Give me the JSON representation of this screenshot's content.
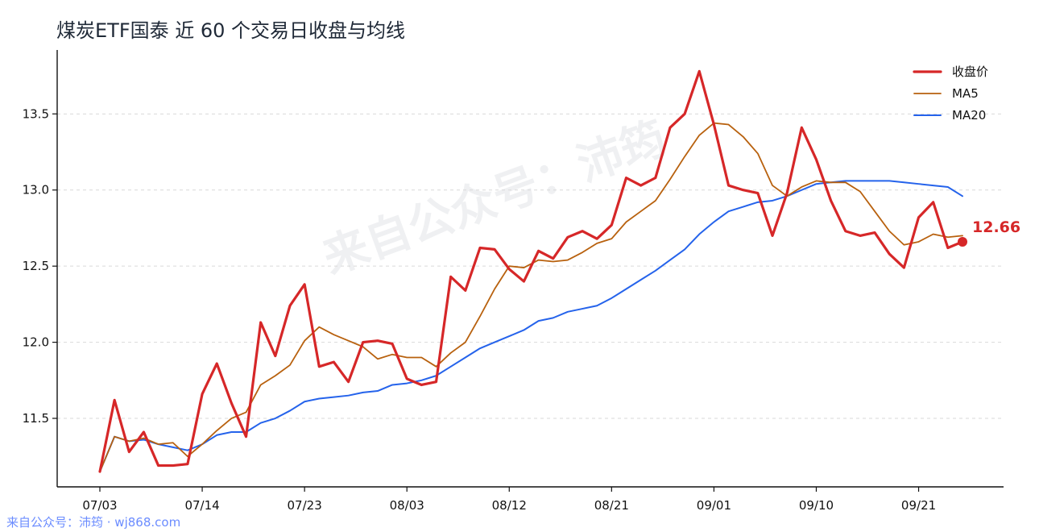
{
  "chart_data": {
    "type": "line",
    "title": "煤炭ETF国泰 近 60 个交易日收盘与均线",
    "xlabel": "",
    "ylabel": "",
    "x_tick_labels": [
      "07/03",
      "07/14",
      "07/23",
      "08/03",
      "08/12",
      "08/21",
      "09/01",
      "09/10",
      "09/21"
    ],
    "y_ticks": [
      11.5,
      12.0,
      12.5,
      13.0,
      13.5
    ],
    "y_tick_labels": [
      "11.5",
      "12.0",
      "12.5",
      "13.0",
      "13.5"
    ],
    "ylim": [
      11.05,
      13.92
    ],
    "grid": "horizontal dashed",
    "legend_position": "top-right",
    "series": [
      {
        "name": "收盘价",
        "color": "#d62728",
        "values": [
          11.15,
          11.62,
          11.28,
          11.41,
          11.19,
          11.19,
          11.2,
          11.66,
          11.86,
          11.6,
          11.38,
          12.13,
          11.91,
          12.24,
          12.38,
          11.84,
          11.87,
          11.74,
          12.0,
          12.01,
          11.99,
          11.76,
          11.72,
          11.74,
          12.43,
          12.34,
          12.62,
          12.61,
          12.48,
          12.4,
          12.6,
          12.55,
          12.69,
          12.73,
          12.68,
          12.77,
          13.08,
          13.03,
          13.08,
          13.41,
          13.5,
          13.78,
          13.43,
          13.03,
          13.0,
          12.98,
          12.7,
          12.98,
          13.41,
          13.2,
          12.93,
          12.73,
          12.7,
          12.72,
          12.58,
          12.49,
          12.82,
          12.92,
          12.62,
          12.66
        ]
      },
      {
        "name": "MA5",
        "color": "#b8610e",
        "values": [
          11.15,
          11.38,
          11.35,
          11.37,
          11.33,
          11.34,
          11.25,
          11.33,
          11.42,
          11.5,
          11.54,
          11.72,
          11.78,
          11.85,
          12.01,
          12.1,
          12.05,
          12.01,
          11.97,
          11.89,
          11.92,
          11.9,
          11.9,
          11.84,
          11.93,
          12.0,
          12.17,
          12.35,
          12.5,
          12.49,
          12.54,
          12.53,
          12.54,
          12.59,
          12.65,
          12.68,
          12.79,
          12.86,
          12.93,
          13.07,
          13.22,
          13.36,
          13.44,
          13.43,
          13.35,
          13.24,
          13.03,
          12.96,
          13.02,
          13.06,
          13.05,
          13.05,
          12.99,
          12.86,
          12.73,
          12.64,
          12.66,
          12.71,
          12.69,
          12.7
        ]
      },
      {
        "name": "MA20",
        "color": "#2563eb",
        "values": [
          11.15,
          11.38,
          11.35,
          11.36,
          11.33,
          11.31,
          11.29,
          11.33,
          11.39,
          11.41,
          11.41,
          11.47,
          11.5,
          11.55,
          11.61,
          11.63,
          11.64,
          11.65,
          11.67,
          11.68,
          11.72,
          11.73,
          11.75,
          11.78,
          11.84,
          11.9,
          11.96,
          12.0,
          12.04,
          12.08,
          12.14,
          12.16,
          12.2,
          12.22,
          12.24,
          12.29,
          12.35,
          12.41,
          12.47,
          12.54,
          12.61,
          12.71,
          12.79,
          12.86,
          12.89,
          12.92,
          12.93,
          12.96,
          13.0,
          13.04,
          13.05,
          13.06,
          13.06,
          13.06,
          13.06,
          13.05,
          13.04,
          13.03,
          13.02,
          12.96
        ]
      }
    ],
    "annotations": [
      {
        "series": "收盘价",
        "index": 59,
        "text": "12.66"
      }
    ]
  },
  "watermark_text": "来自公众号：沛筠",
  "credit_text": "来自公众号：沛筠 · wj868.com"
}
